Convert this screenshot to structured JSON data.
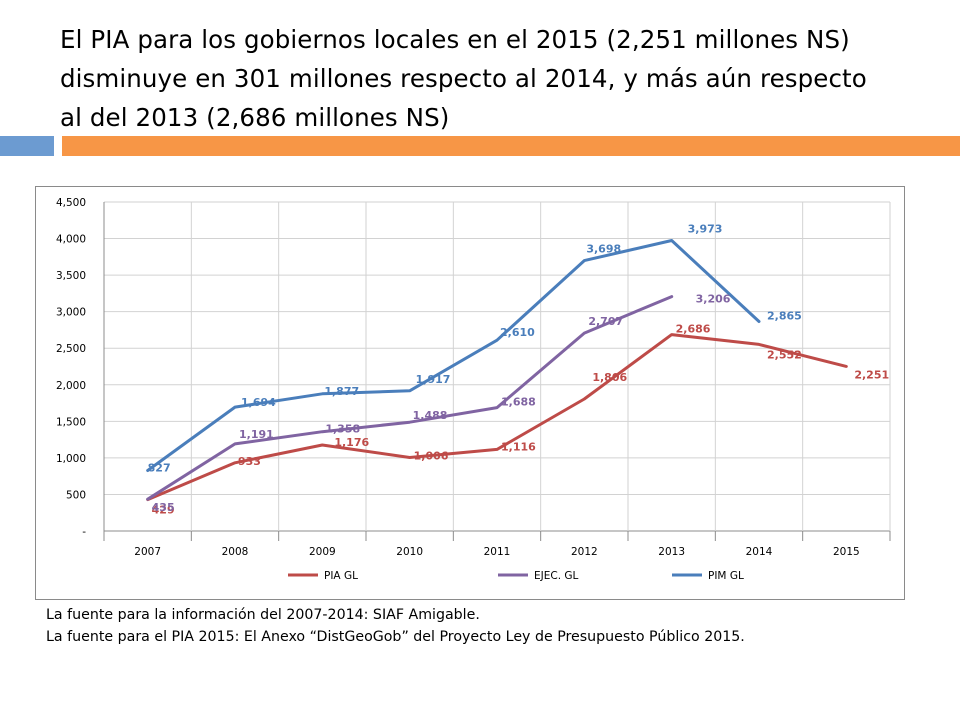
{
  "slide": {
    "title_lines": [
      "El PIA para los gobiernos locales en el 2015 (2,251 millones NS)",
      "disminuye en 301 millones respecto al 2014, y más aún respecto",
      "al del 2013 (2,686 millones NS)"
    ],
    "source_lines": [
      "La fuente para la información del 2007-2014: SIAF Amigable.",
      "La fuente para el PIA 2015: El Anexo “DistGeoGob” del Proyecto Ley de Presupuesto Público  2015."
    ],
    "accent_colors": {
      "blue": "#6c9bd1",
      "orange": "#f79646"
    }
  },
  "chart_data": {
    "type": "line",
    "title": "",
    "xlabel": "",
    "ylabel": "",
    "categories": [
      "2007",
      "2008",
      "2009",
      "2010",
      "2011",
      "2012",
      "2013",
      "2014",
      "2015"
    ],
    "ylim": [
      0,
      4500
    ],
    "yticks": [
      0,
      500,
      1000,
      1500,
      2000,
      2500,
      3000,
      3500,
      4000,
      4500
    ],
    "ytick_labels": [
      "-",
      "500",
      "1,000",
      "1,500",
      "2,000",
      "2,500",
      "3,000",
      "3,500",
      "4,000",
      "4,500"
    ],
    "grid": true,
    "legend_position": "bottom",
    "series": [
      {
        "name": "PIA GL",
        "color": "#be4b48",
        "values": [
          429,
          933,
          1176,
          1006,
          1116,
          1806,
          2686,
          2552,
          2251
        ],
        "labels": [
          "429",
          "933",
          "1,176",
          "1,006",
          "1,116",
          "1,806",
          "2,686",
          "2,552",
          "2,251"
        ]
      },
      {
        "name": "EJEC. GL",
        "color": "#8064a2",
        "values": [
          435,
          1191,
          1358,
          1488,
          1688,
          2707,
          3206,
          null,
          null
        ],
        "labels": [
          "435",
          "1,191",
          "1,358",
          "1,488",
          "1,688",
          "2,707",
          "3,206",
          null,
          null
        ]
      },
      {
        "name": "PIM GL",
        "color": "#4a7ebb",
        "values": [
          827,
          1694,
          1877,
          1917,
          2610,
          3698,
          3973,
          2865,
          null
        ],
        "labels": [
          "827",
          "1,694",
          "1,877",
          "1,917",
          "2,610",
          "3,698",
          "3,973",
          "2,865",
          null
        ]
      }
    ]
  }
}
